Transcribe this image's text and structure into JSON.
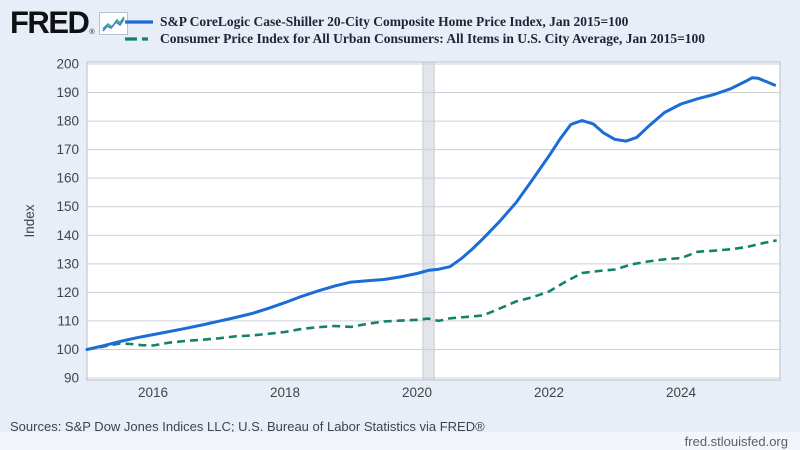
{
  "header": {
    "logo_text": "FRED",
    "logo_reg": "®",
    "logo_icon": "fred-sparkline-icon"
  },
  "footer": {
    "sources": "Sources: S&P Dow Jones Indices LLC; U.S. Bureau of Labor Statistics via FRED®",
    "site": "fred.stlouisfed.org"
  },
  "colors": {
    "background": "#e7eef8",
    "plot_background": "#ffffff",
    "gridline": "#ccd1d6",
    "plot_border": "#b9c0c8",
    "recession_band_fill": "#e2e6ea",
    "recession_band_edge": "#c6ccd3",
    "case_shiller_line": "#1b6cd4",
    "cpi_line": "#12826b",
    "tick_label": "#444444",
    "legend_text": "#1e2433"
  },
  "chart_data": {
    "type": "line",
    "title": "",
    "ylabel": "Index",
    "xlabel": "",
    "ylim": [
      90,
      200
    ],
    "ytick_step": 10,
    "yticks": [
      90,
      100,
      110,
      120,
      130,
      140,
      150,
      160,
      170,
      180,
      190,
      200
    ],
    "xticks": [
      2016,
      2018,
      2020,
      2022,
      2024
    ],
    "x_range_years": [
      2015.0,
      2025.5
    ],
    "grid": "horizontal-only",
    "legend_position": "top-left",
    "recession_band": {
      "start_year": 2020.09,
      "end_year": 2020.26,
      "note": "gray vertical recession shading near 2020"
    },
    "series": [
      {
        "name": "S&P CoreLogic Case-Shiller 20-City Composite Home Price Index, Jan 2015=100",
        "style": "solid",
        "color": "#1b6cd4",
        "points": [
          [
            2015.0,
            100.0
          ],
          [
            2015.25,
            101.3
          ],
          [
            2015.5,
            102.8
          ],
          [
            2015.75,
            104.1
          ],
          [
            2016.0,
            105.2
          ],
          [
            2016.25,
            106.3
          ],
          [
            2016.5,
            107.4
          ],
          [
            2016.75,
            108.6
          ],
          [
            2017.0,
            109.9
          ],
          [
            2017.25,
            111.2
          ],
          [
            2017.5,
            112.6
          ],
          [
            2017.75,
            114.4
          ],
          [
            2018.0,
            116.4
          ],
          [
            2018.25,
            118.6
          ],
          [
            2018.5,
            120.5
          ],
          [
            2018.75,
            122.2
          ],
          [
            2019.0,
            123.6
          ],
          [
            2019.25,
            124.1
          ],
          [
            2019.5,
            124.5
          ],
          [
            2019.75,
            125.4
          ],
          [
            2020.0,
            126.6
          ],
          [
            2020.17,
            127.7
          ],
          [
            2020.33,
            128.1
          ],
          [
            2020.5,
            129.0
          ],
          [
            2020.67,
            131.8
          ],
          [
            2020.83,
            135.0
          ],
          [
            2021.0,
            138.8
          ],
          [
            2021.25,
            144.8
          ],
          [
            2021.5,
            151.4
          ],
          [
            2021.75,
            159.5
          ],
          [
            2022.0,
            167.8
          ],
          [
            2022.17,
            173.8
          ],
          [
            2022.33,
            178.8
          ],
          [
            2022.5,
            180.2
          ],
          [
            2022.67,
            179.0
          ],
          [
            2022.83,
            175.8
          ],
          [
            2023.0,
            173.6
          ],
          [
            2023.17,
            173.0
          ],
          [
            2023.33,
            174.3
          ],
          [
            2023.5,
            178.0
          ],
          [
            2023.75,
            183.0
          ],
          [
            2024.0,
            186.0
          ],
          [
            2024.25,
            187.8
          ],
          [
            2024.5,
            189.3
          ],
          [
            2024.75,
            191.3
          ],
          [
            2025.0,
            194.2
          ],
          [
            2025.08,
            195.2
          ],
          [
            2025.17,
            195.0
          ],
          [
            2025.33,
            193.5
          ],
          [
            2025.42,
            192.6
          ]
        ]
      },
      {
        "name": "Consumer Price Index for All Urban Consumers: All Items in U.S. City Average, Jan 2015=100",
        "style": "dashed",
        "color": "#12826b",
        "points": [
          [
            2015.0,
            100.0
          ],
          [
            2015.17,
            100.7
          ],
          [
            2015.33,
            101.4
          ],
          [
            2015.5,
            102.1
          ],
          [
            2015.67,
            101.9
          ],
          [
            2015.83,
            101.5
          ],
          [
            2016.0,
            101.4
          ],
          [
            2016.25,
            102.4
          ],
          [
            2016.5,
            103.0
          ],
          [
            2016.75,
            103.4
          ],
          [
            2017.0,
            103.9
          ],
          [
            2017.25,
            104.6
          ],
          [
            2017.5,
            104.9
          ],
          [
            2017.75,
            105.5
          ],
          [
            2018.0,
            106.1
          ],
          [
            2018.25,
            107.2
          ],
          [
            2018.5,
            107.8
          ],
          [
            2018.75,
            108.2
          ],
          [
            2019.0,
            107.9
          ],
          [
            2019.25,
            109.0
          ],
          [
            2019.5,
            109.8
          ],
          [
            2019.75,
            110.1
          ],
          [
            2020.0,
            110.4
          ],
          [
            2020.17,
            110.8
          ],
          [
            2020.33,
            110.0
          ],
          [
            2020.5,
            110.9
          ],
          [
            2020.75,
            111.4
          ],
          [
            2021.0,
            111.9
          ],
          [
            2021.25,
            114.3
          ],
          [
            2021.5,
            116.8
          ],
          [
            2021.75,
            118.3
          ],
          [
            2022.0,
            120.3
          ],
          [
            2022.25,
            123.7
          ],
          [
            2022.5,
            126.8
          ],
          [
            2022.75,
            127.5
          ],
          [
            2023.0,
            128.0
          ],
          [
            2023.25,
            129.8
          ],
          [
            2023.5,
            130.8
          ],
          [
            2023.75,
            131.6
          ],
          [
            2024.0,
            132.0
          ],
          [
            2024.25,
            134.2
          ],
          [
            2024.5,
            134.6
          ],
          [
            2024.75,
            135.1
          ],
          [
            2025.0,
            135.9
          ],
          [
            2025.25,
            137.3
          ],
          [
            2025.45,
            138.2
          ]
        ]
      }
    ]
  }
}
